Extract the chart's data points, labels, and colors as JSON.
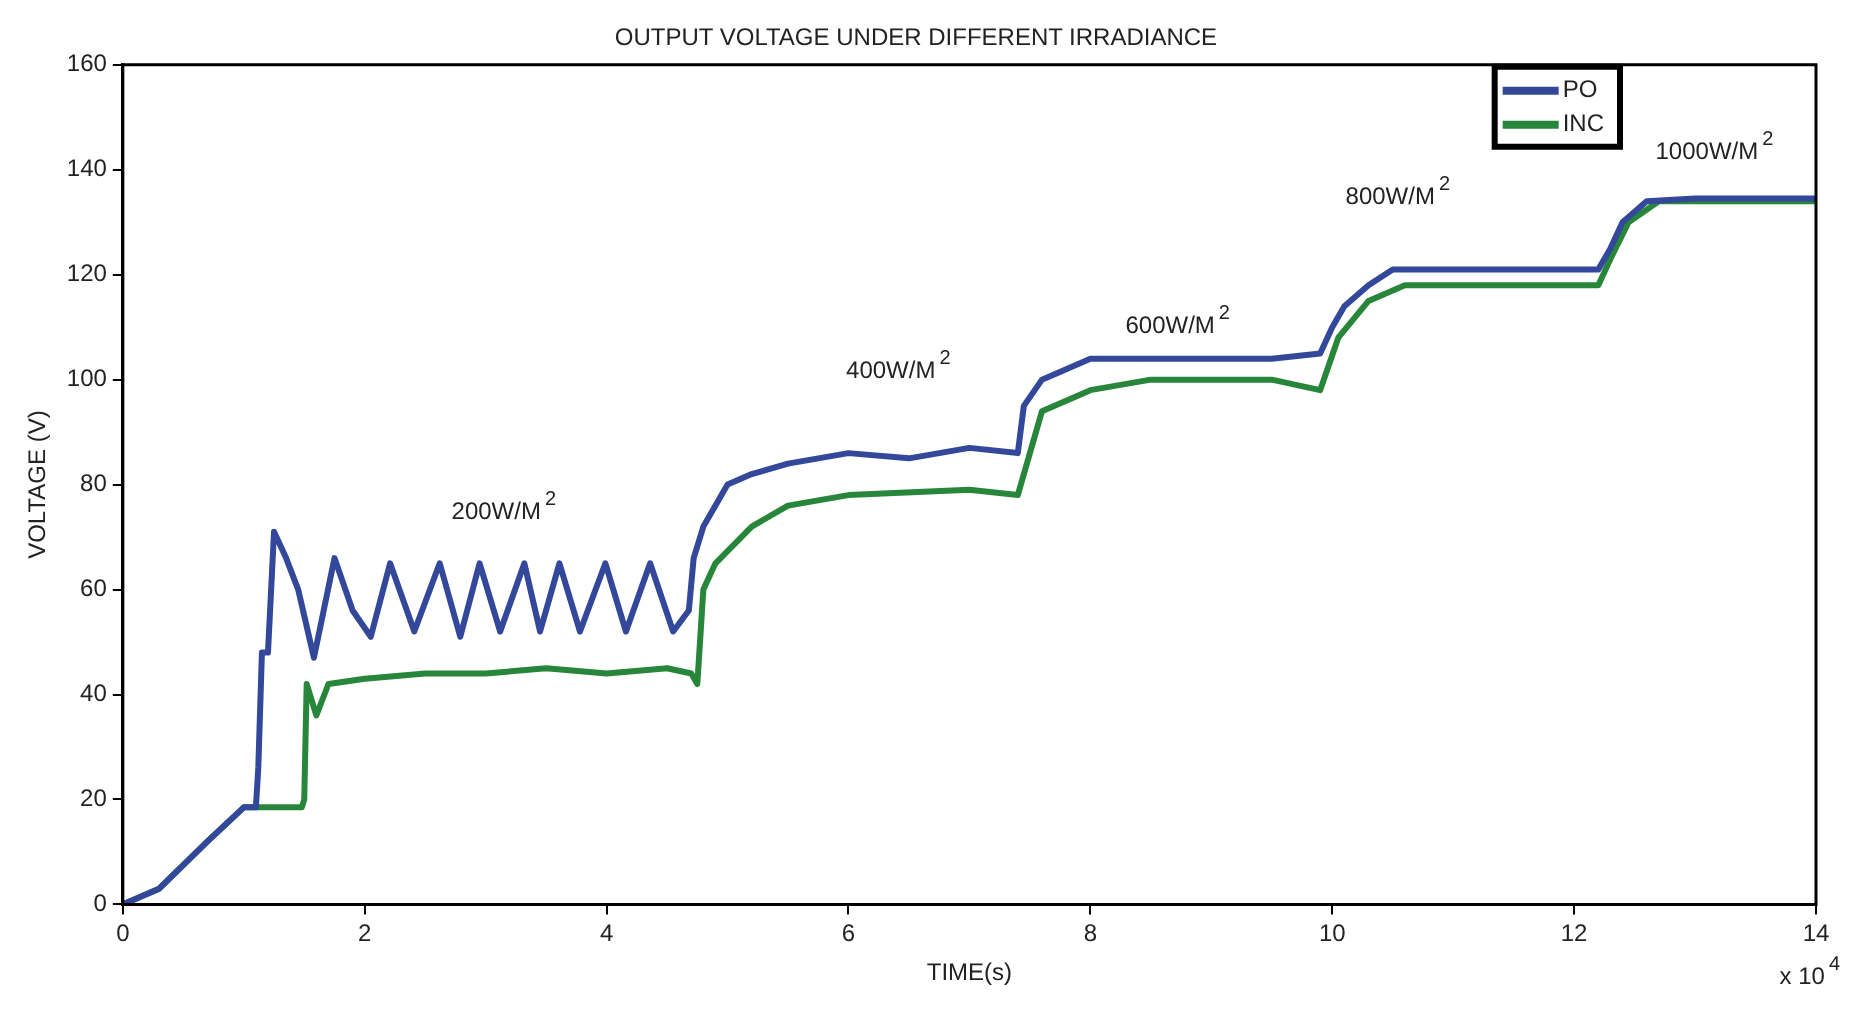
{
  "chart_data": {
    "type": "line",
    "title": "OUTPUT VOLTAGE UNDER DIFFERENT IRRADIANCE",
    "xlabel": "TIME(s)",
    "ylabel": "VOLTAGE (V)",
    "xlim": [
      0,
      14
    ],
    "xticks": [
      0,
      2,
      4,
      6,
      8,
      10,
      12,
      14
    ],
    "ylim": [
      0,
      160
    ],
    "yticks": [
      0,
      20,
      40,
      60,
      80,
      100,
      120,
      140,
      160
    ],
    "grid": false,
    "legend": "top right",
    "line_style": "solid",
    "marker": "none",
    "series": [
      {
        "name": "PO",
        "color": "#33489a",
        "x": [
          0,
          0.3,
          0.7,
          1.0,
          1.1,
          1.12,
          1.15,
          1.2,
          1.25,
          1.35,
          1.45,
          1.58,
          1.75,
          1.9,
          2.05,
          2.21,
          2.41,
          2.62,
          2.79,
          2.95,
          3.12,
          3.32,
          3.45,
          3.61,
          3.78,
          3.99,
          4.16,
          4.36,
          4.55,
          4.68,
          4.72,
          4.8,
          5.0,
          5.2,
          5.5,
          6.0,
          6.5,
          7.0,
          7.4,
          7.45,
          7.6,
          8.0,
          8.5,
          9.0,
          9.5,
          9.9,
          10.0,
          10.1,
          10.3,
          10.5,
          11.0,
          11.5,
          12.2,
          12.3,
          12.4,
          12.6,
          13.0,
          14.0
        ],
        "values": [
          0,
          3,
          12,
          18.5,
          18.5,
          26,
          48,
          48,
          71,
          66,
          60,
          47,
          66,
          56,
          51,
          65,
          52,
          65,
          51,
          65,
          52,
          65,
          52,
          65,
          52,
          65,
          52,
          65,
          52,
          56,
          66,
          72,
          80,
          82,
          84,
          86,
          85,
          87,
          86,
          95,
          100,
          104,
          104,
          104,
          104,
          105,
          110,
          114,
          118,
          121,
          121,
          121,
          121,
          125,
          130,
          134,
          134.5,
          134.5
        ]
      },
      {
        "name": "INC",
        "color": "#27863a",
        "x": [
          0,
          0.3,
          0.7,
          1.0,
          1.1,
          1.48,
          1.5,
          1.52,
          1.6,
          1.7,
          2.0,
          2.5,
          3.0,
          3.5,
          4.0,
          4.5,
          4.7,
          4.75,
          4.8,
          4.9,
          5.2,
          5.5,
          6.0,
          7.0,
          7.4,
          7.5,
          7.6,
          8.0,
          8.5,
          9.0,
          9.5,
          9.9,
          10.05,
          10.3,
          10.6,
          11.0,
          11.5,
          12.2,
          12.3,
          12.45,
          12.7,
          13.0,
          14.0
        ],
        "values": [
          0,
          3,
          12,
          18.5,
          18.5,
          18.5,
          20,
          42,
          36,
          42,
          43,
          44,
          44,
          45,
          44,
          45,
          44,
          42,
          60,
          65,
          72,
          76,
          78,
          79,
          78,
          86,
          94,
          98,
          100,
          100,
          100,
          98,
          108,
          115,
          118,
          118,
          118,
          118,
          123,
          130,
          134,
          134,
          134
        ]
      }
    ],
    "annotations": [
      "200W/M$^{2}$",
      "400W/M$^{2}$",
      "600W/M$^{2}$",
      "800W/M$^{2}$",
      "1000W/M$^{2}$",
      "x 10$^{4}$"
    ]
  }
}
